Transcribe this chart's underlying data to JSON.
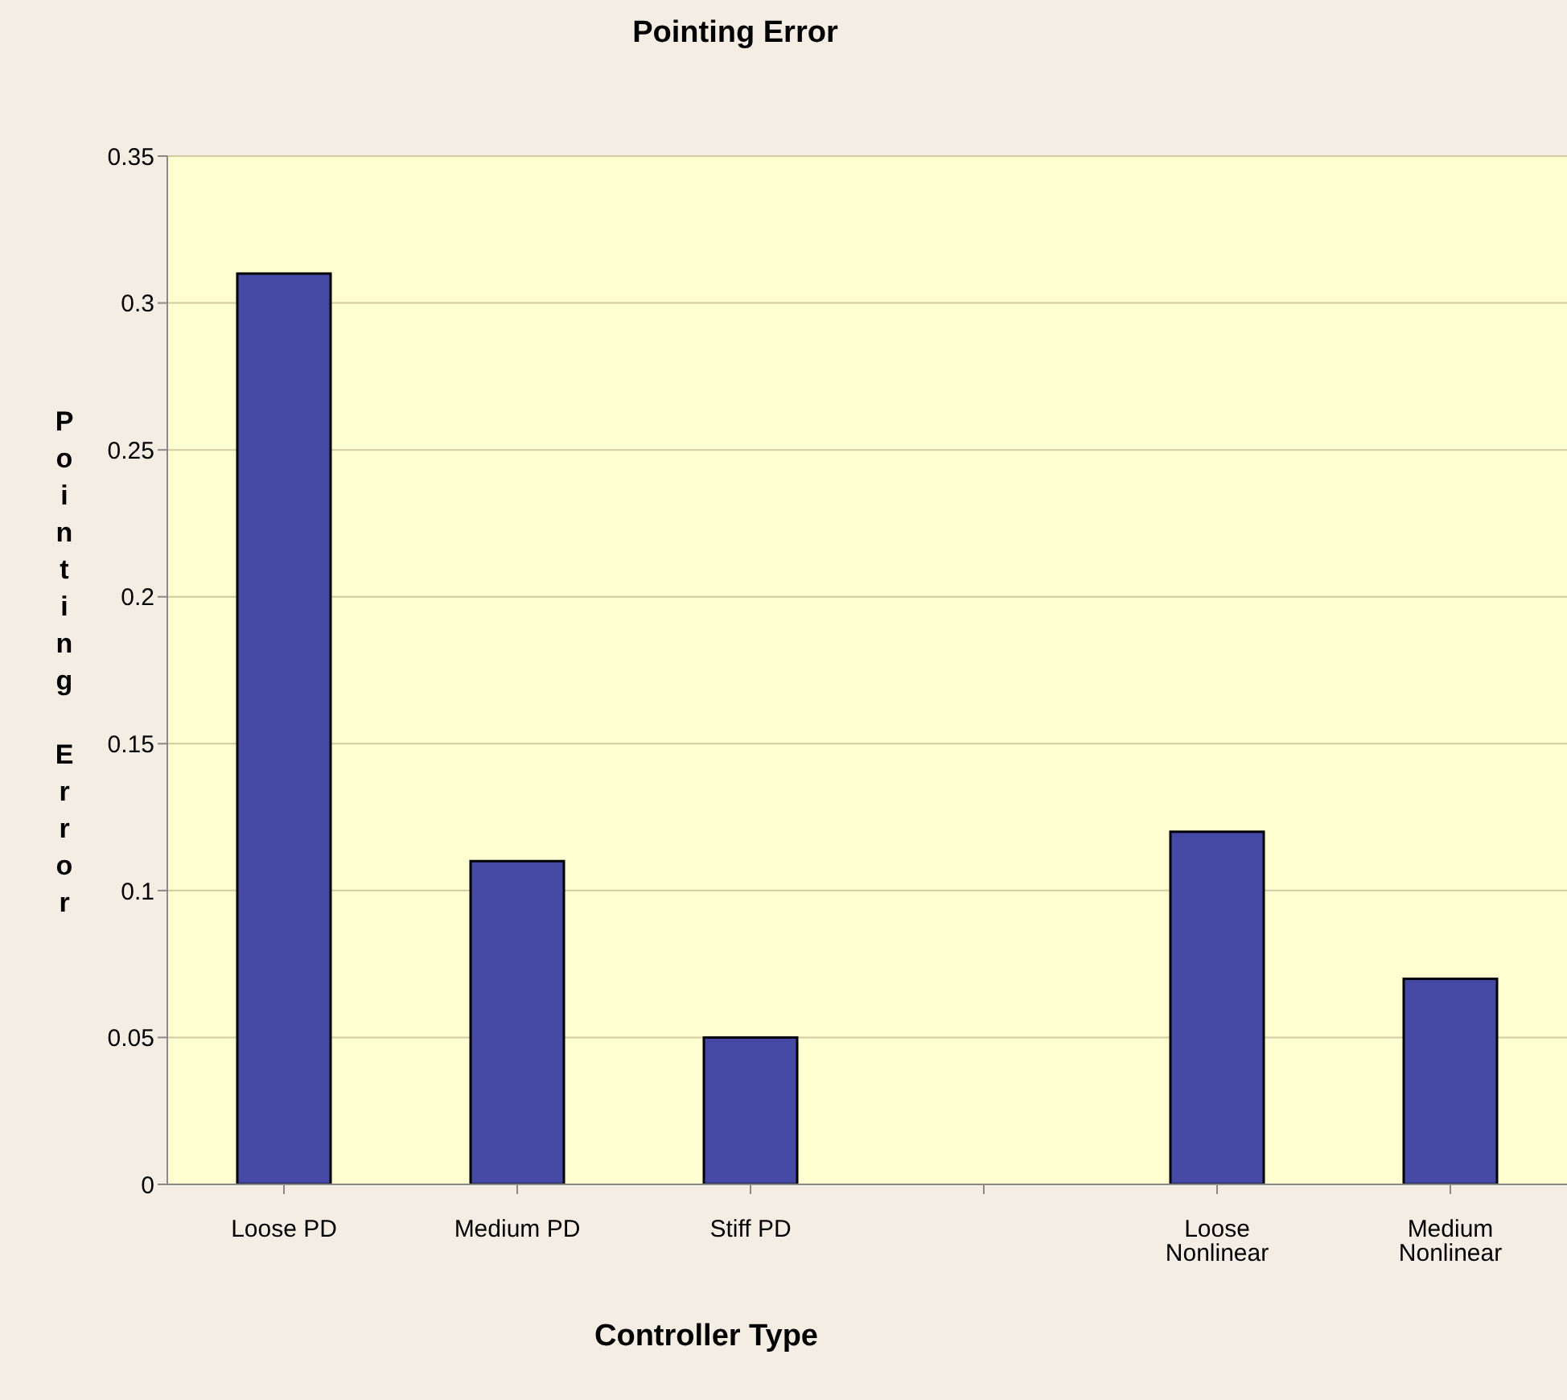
{
  "chart_data": {
    "type": "bar",
    "title": "Pointing Error",
    "xlabel": "Controller Type",
    "ylabel": "Pointing Error",
    "categories": [
      "Loose PD",
      "Medium PD",
      "Stiff PD",
      null,
      "Loose Nonlinear",
      "Medium Nonlinear"
    ],
    "values": [
      0.31,
      0.11,
      0.05,
      null,
      0.12,
      0.07
    ],
    "color": "#4549a3",
    "ylim": [
      0,
      0.35
    ],
    "yticks": [
      0,
      0.05,
      0.1,
      0.15,
      0.2,
      0.25,
      0.3,
      0.35
    ],
    "grid": "y"
  }
}
